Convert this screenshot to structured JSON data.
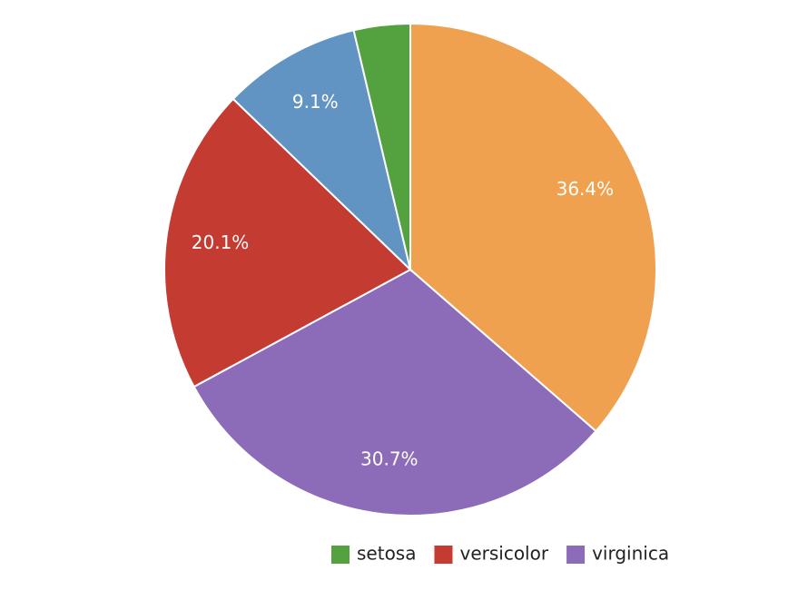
{
  "chart_data": {
    "type": "pie",
    "categories": [
      null,
      "virginica",
      "versicolor",
      null,
      "setosa"
    ],
    "values": [
      36.4,
      30.7,
      20.1,
      9.1,
      3.7
    ],
    "value_labels": [
      "36.4%",
      "30.7%",
      "20.1%",
      "9.1%",
      null
    ],
    "colors": [
      "#f0a150",
      "#8c6bb9",
      "#c43b32",
      "#6193c3",
      "#54a140"
    ],
    "legend": "bottom-right"
  }
}
